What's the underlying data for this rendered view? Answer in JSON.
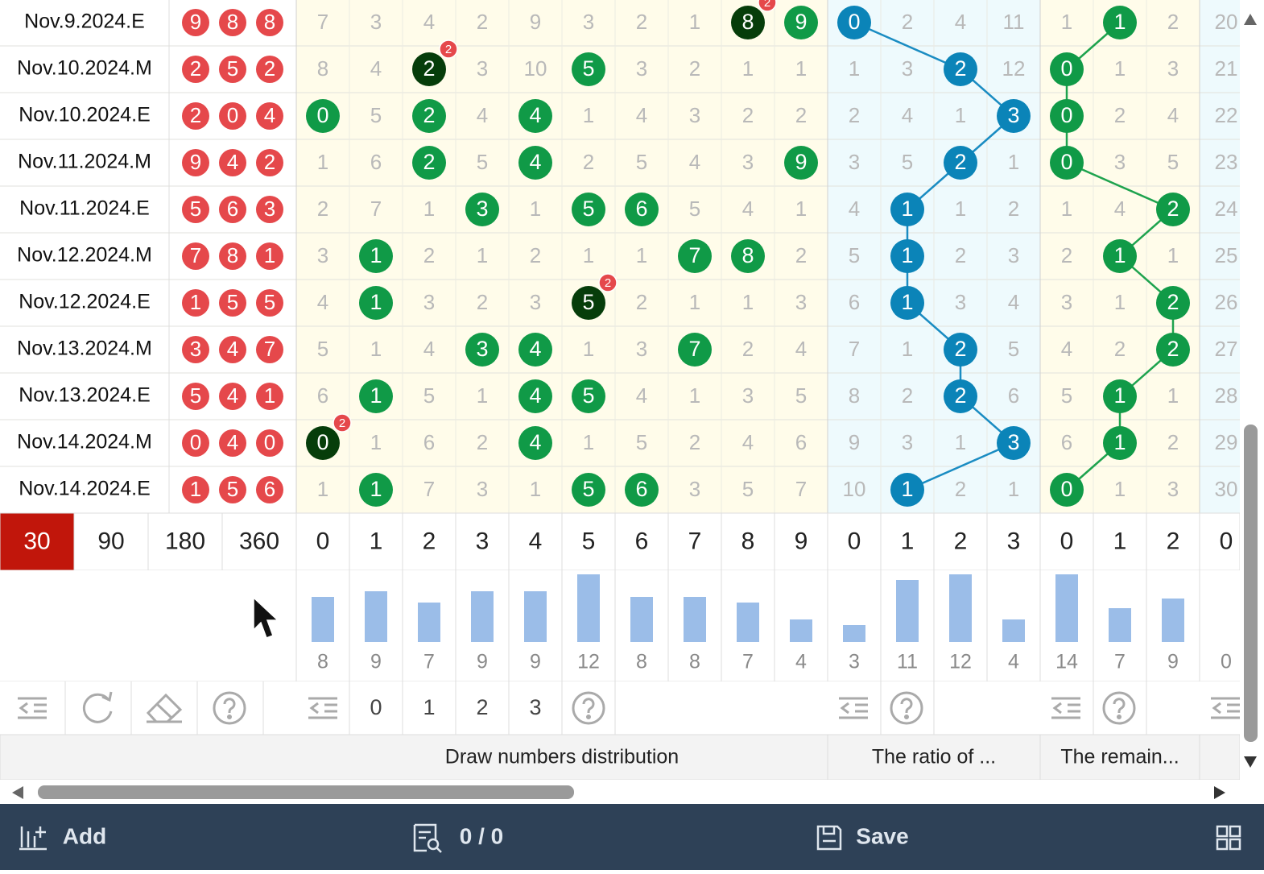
{
  "rows": [
    {
      "date": "Nov.9.2024.E",
      "draw": [
        9,
        8,
        8
      ],
      "dist": [
        7,
        3,
        4,
        2,
        9,
        3,
        2,
        1,
        {
          "hit": 8,
          "badge": 2
        },
        {
          "hit": 9
        }
      ],
      "ratio": [
        {
          "hit": 0
        },
        2,
        4,
        11
      ],
      "remainder": [
        1,
        {
          "hit": 1
        },
        2
      ],
      "extra": [
        20
      ]
    },
    {
      "date": "Nov.10.2024.M",
      "draw": [
        2,
        5,
        2
      ],
      "dist": [
        8,
        4,
        {
          "hit": 2,
          "badge": 2
        },
        3,
        10,
        {
          "hit": 5
        },
        3,
        2,
        1,
        1
      ],
      "ratio": [
        1,
        3,
        {
          "hit": 2
        },
        12
      ],
      "remainder": [
        {
          "hit": 0
        },
        1,
        3
      ],
      "extra": [
        21
      ]
    },
    {
      "date": "Nov.10.2024.E",
      "draw": [
        2,
        0,
        4
      ],
      "dist": [
        {
          "hit": 0
        },
        5,
        {
          "hit": 2
        },
        4,
        {
          "hit": 4
        },
        1,
        4,
        3,
        2,
        2
      ],
      "ratio": [
        2,
        4,
        1,
        {
          "hit": 3
        }
      ],
      "remainder": [
        {
          "hit": 0
        },
        2,
        4
      ],
      "extra": [
        22
      ]
    },
    {
      "date": "Nov.11.2024.M",
      "draw": [
        9,
        4,
        2
      ],
      "dist": [
        1,
        6,
        {
          "hit": 2
        },
        5,
        {
          "hit": 4
        },
        2,
        5,
        4,
        3,
        {
          "hit": 9
        }
      ],
      "ratio": [
        3,
        5,
        {
          "hit": 2
        },
        1
      ],
      "remainder": [
        {
          "hit": 0
        },
        3,
        5
      ],
      "extra": [
        23
      ]
    },
    {
      "date": "Nov.11.2024.E",
      "draw": [
        5,
        6,
        3
      ],
      "dist": [
        2,
        7,
        1,
        {
          "hit": 3
        },
        1,
        {
          "hit": 5
        },
        {
          "hit": 6
        },
        5,
        4,
        1
      ],
      "ratio": [
        4,
        {
          "hit": 1
        },
        1,
        2
      ],
      "remainder": [
        1,
        4,
        {
          "hit": 2
        }
      ],
      "extra": [
        24
      ]
    },
    {
      "date": "Nov.12.2024.M",
      "draw": [
        7,
        8,
        1
      ],
      "dist": [
        3,
        {
          "hit": 1
        },
        2,
        1,
        2,
        1,
        1,
        {
          "hit": 7
        },
        {
          "hit": 8
        },
        2
      ],
      "ratio": [
        5,
        {
          "hit": 1
        },
        2,
        3
      ],
      "remainder": [
        2,
        {
          "hit": 1
        },
        1
      ],
      "extra": [
        25
      ]
    },
    {
      "date": "Nov.12.2024.E",
      "draw": [
        1,
        5,
        5
      ],
      "dist": [
        4,
        {
          "hit": 1
        },
        3,
        2,
        3,
        {
          "hit": 5,
          "badge": 2
        },
        2,
        1,
        1,
        3
      ],
      "ratio": [
        6,
        {
          "hit": 1
        },
        3,
        4
      ],
      "remainder": [
        3,
        1,
        {
          "hit": 2
        }
      ],
      "extra": [
        26
      ]
    },
    {
      "date": "Nov.13.2024.M",
      "draw": [
        3,
        4,
        7
      ],
      "dist": [
        5,
        1,
        4,
        {
          "hit": 3
        },
        {
          "hit": 4
        },
        1,
        3,
        {
          "hit": 7
        },
        2,
        4
      ],
      "ratio": [
        7,
        1,
        {
          "hit": 2
        },
        5
      ],
      "remainder": [
        4,
        2,
        {
          "hit": 2
        }
      ],
      "extra": [
        27
      ]
    },
    {
      "date": "Nov.13.2024.E",
      "draw": [
        5,
        4,
        1
      ],
      "dist": [
        6,
        {
          "hit": 1
        },
        5,
        1,
        {
          "hit": 4
        },
        {
          "hit": 5
        },
        4,
        1,
        3,
        5
      ],
      "ratio": [
        8,
        2,
        {
          "hit": 2
        },
        6
      ],
      "remainder": [
        5,
        {
          "hit": 1
        },
        1
      ],
      "extra": [
        28
      ]
    },
    {
      "date": "Nov.14.2024.M",
      "draw": [
        0,
        4,
        0
      ],
      "dist": [
        {
          "hit": 0,
          "badge": 2
        },
        1,
        6,
        2,
        {
          "hit": 4
        },
        1,
        5,
        2,
        4,
        6
      ],
      "ratio": [
        9,
        3,
        1,
        {
          "hit": 3
        }
      ],
      "remainder": [
        6,
        {
          "hit": 1
        },
        2
      ],
      "extra": [
        29
      ]
    },
    {
      "date": "Nov.14.2024.E",
      "draw": [
        1,
        5,
        6
      ],
      "dist": [
        1,
        {
          "hit": 1
        },
        7,
        3,
        1,
        {
          "hit": 5
        },
        {
          "hit": 6
        },
        3,
        5,
        7
      ],
      "ratio": [
        10,
        {
          "hit": 1
        },
        2,
        1
      ],
      "remainder": [
        {
          "hit": 0
        },
        1,
        3
      ],
      "extra": [
        30
      ]
    }
  ],
  "periods": {
    "options": [
      "30",
      "90",
      "180",
      "360"
    ],
    "active": 0
  },
  "columns": {
    "dist": [
      0,
      1,
      2,
      3,
      4,
      5,
      6,
      7,
      8,
      9
    ],
    "ratio": [
      0,
      1,
      2,
      3
    ],
    "remainder": [
      0,
      1,
      2
    ],
    "extra": [
      0
    ]
  },
  "counts": {
    "dist": [
      8,
      9,
      7,
      9,
      9,
      12,
      8,
      8,
      7,
      4
    ],
    "ratio": [
      3,
      11,
      12,
      4
    ],
    "remainder": [
      14,
      7,
      9
    ],
    "extra": [
      0
    ]
  },
  "tools": {
    "dist": [
      0,
      1,
      2,
      3
    ]
  },
  "sections": {
    "dist": "Draw numbers distribution",
    "ratio": "The ratio of ...",
    "remainder": "The remain..."
  },
  "footer": {
    "add": "Add",
    "search": "0 / 0",
    "save": "Save"
  }
}
